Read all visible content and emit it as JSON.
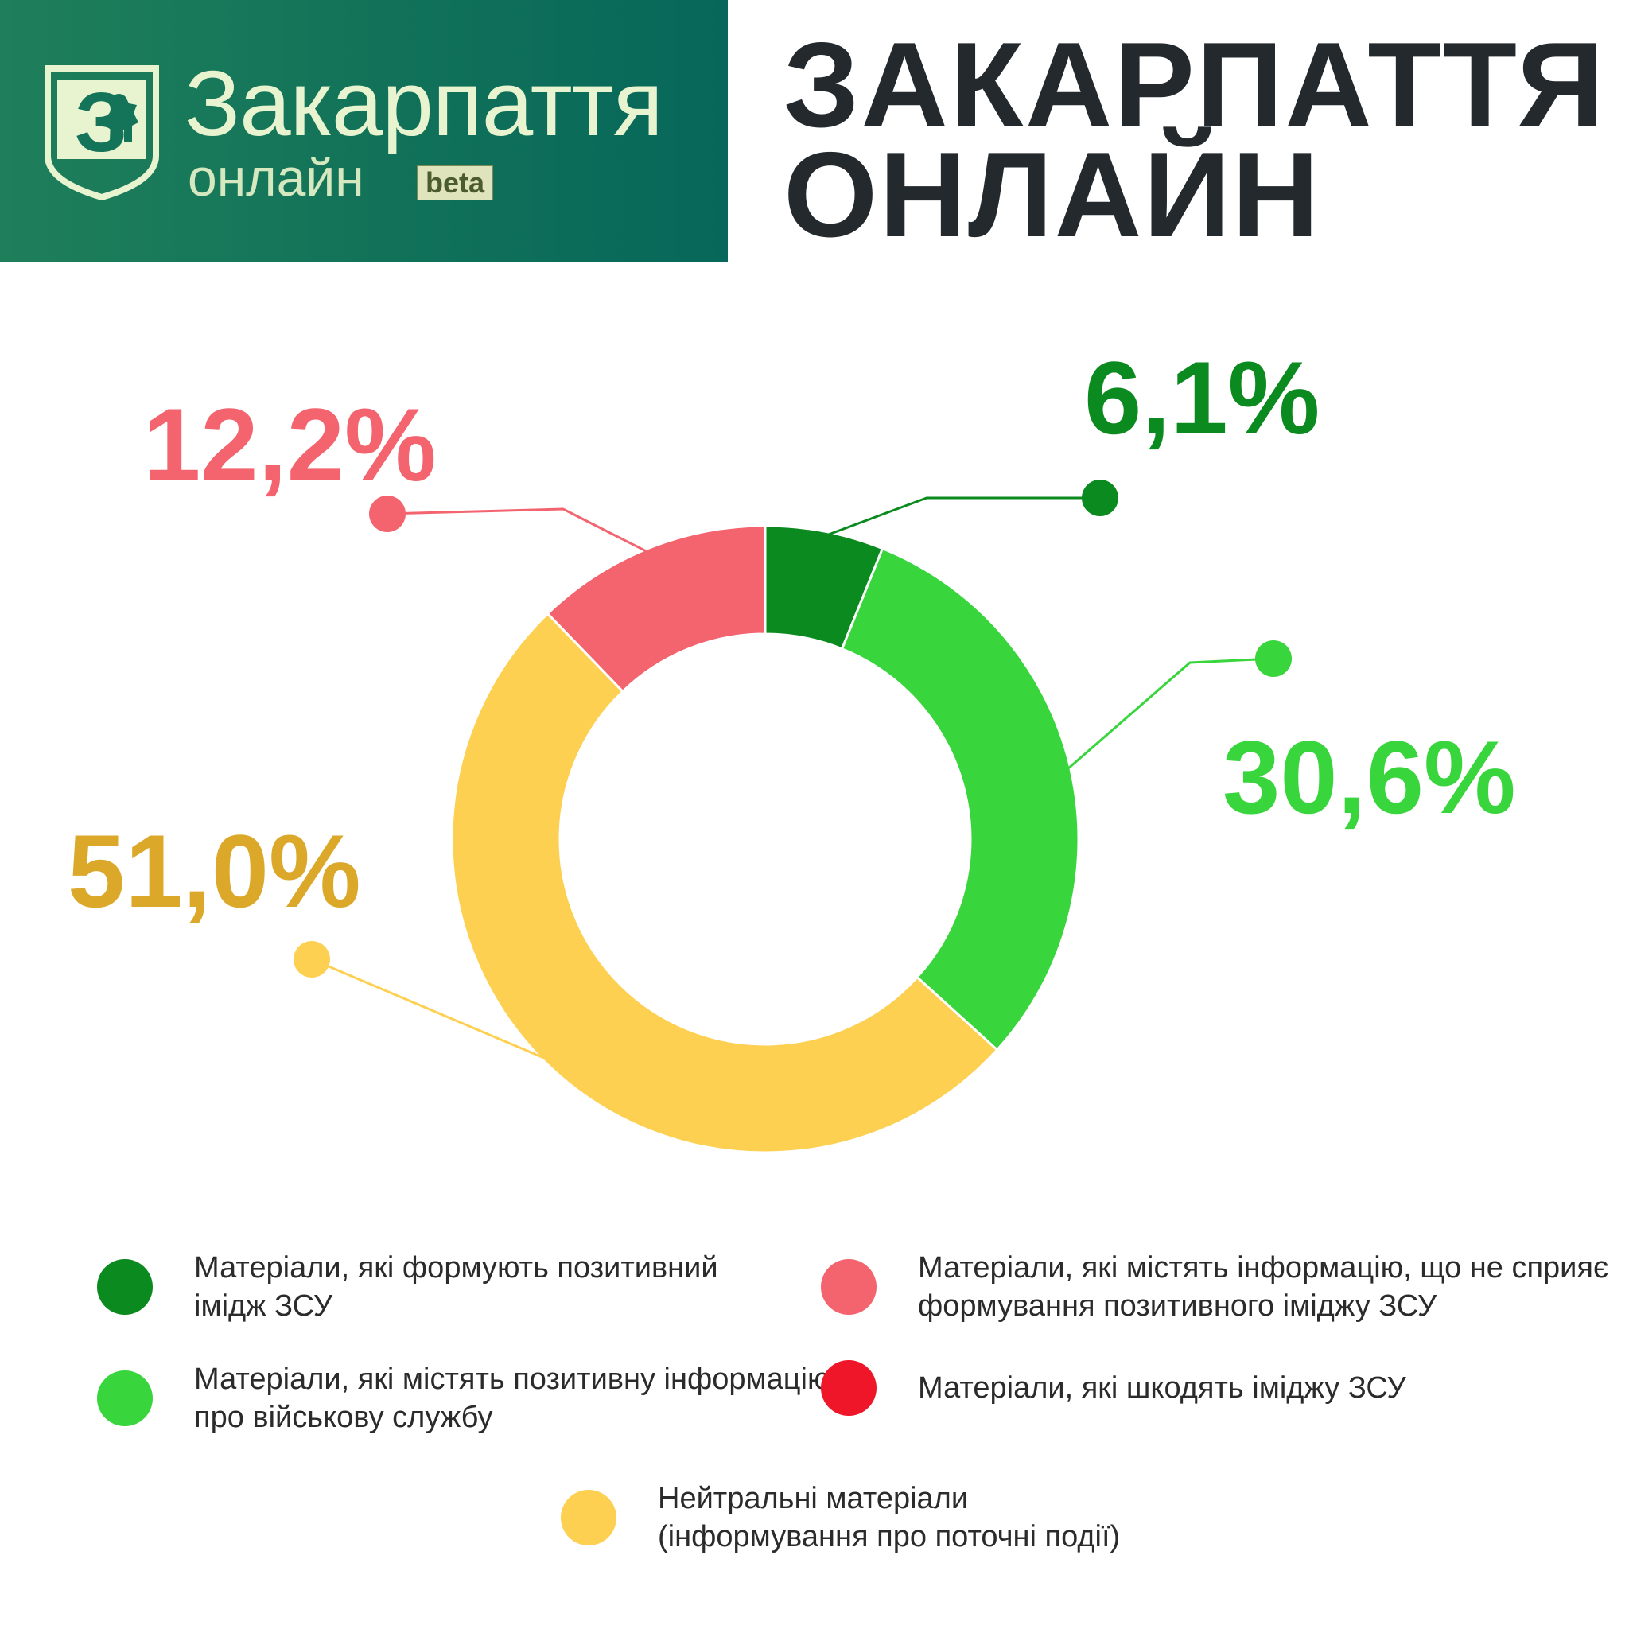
{
  "logo": {
    "line1": "Закарпаття",
    "line2": "онлайн",
    "badge": "beta",
    "emblem_letter": "З"
  },
  "headline": {
    "line1": "ЗАКАРПАТТЯ",
    "line2": "ОНЛАЙН"
  },
  "chart_data": {
    "type": "pie",
    "donut": true,
    "series": [
      {
        "label": "6,1%",
        "value": 6.1,
        "color": "#0b8a1f",
        "text_color": "#0b8a1f"
      },
      {
        "label": "30,6%",
        "value": 30.6,
        "color": "#38d53c",
        "text_color": "#38d53c"
      },
      {
        "label": "51,0%",
        "value": 51.0,
        "color": "#fdd052",
        "text_color": "#dba82a"
      },
      {
        "label": "12,2%",
        "value": 12.2,
        "color": "#f3646f",
        "text_color": "#f3646f"
      }
    ],
    "legend": [
      {
        "text_line1": "Матеріали, які формують позитивний",
        "text_line2": "імідж ЗСУ",
        "color": "#0b8a1f"
      },
      {
        "text_line1": "Матеріали, які містять інформацію, що не сприяє",
        "text_line2": "формування позитивного іміджу ЗСУ",
        "color": "#f3646f"
      },
      {
        "text_line1": "Матеріали, які містять позитивну інформацію",
        "text_line2": "про військову службу",
        "color": "#38d53c"
      },
      {
        "text_line1": "Матеріали, які шкодять іміджу ЗСУ",
        "text_line2": "",
        "color": "#f0162a"
      },
      {
        "text_line1": "Нейтральні матеріали",
        "text_line2": "(інформування про поточні події)",
        "color": "#fdd052"
      }
    ]
  }
}
